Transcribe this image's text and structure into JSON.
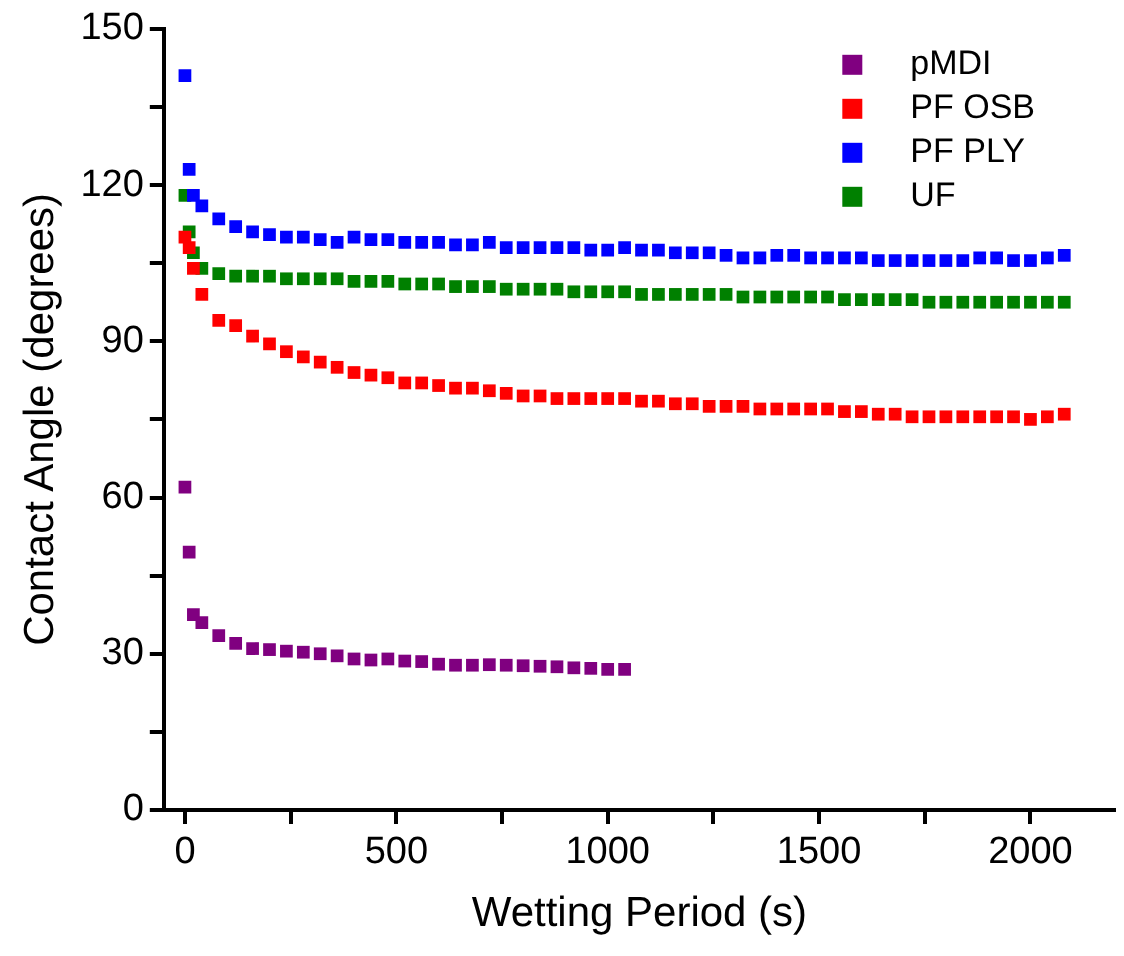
{
  "chart_data": {
    "type": "scatter",
    "xlabel": "Wetting Period (s)",
    "ylabel": "Contact Angle (degrees)",
    "xlim": [
      -50,
      2200
    ],
    "ylim": [
      0,
      150
    ],
    "xticks": [
      0,
      {
        "value": 250,
        "label": null
      },
      500,
      {
        "value": 750,
        "label": null
      },
      1000,
      {
        "value": 1250,
        "label": null
      },
      1500,
      {
        "value": 1750,
        "label": null
      },
      2000
    ],
    "yticks": [
      0,
      {
        "value": 15,
        "label": null
      },
      30,
      {
        "value": 45,
        "label": null
      },
      60,
      {
        "value": 75,
        "label": null
      },
      90,
      {
        "value": 105,
        "label": null
      },
      120,
      {
        "value": 135,
        "label": null
      },
      150
    ],
    "grid": false,
    "legend": "top right",
    "marker": "square",
    "series": [
      {
        "name": "pMDI",
        "color": "#800080",
        "x": [
          0,
          10,
          20,
          40,
          80,
          120,
          160,
          200,
          240,
          280,
          320,
          360,
          400,
          440,
          480,
          520,
          560,
          600,
          640,
          680,
          720,
          760,
          800,
          840,
          880,
          920,
          960,
          1000,
          1040
        ],
        "values": [
          62,
          49.5,
          37.5,
          36,
          33.5,
          32,
          31,
          30.8,
          30.5,
          30.3,
          30,
          29.6,
          29,
          28.8,
          29,
          28.6,
          28.5,
          28,
          27.8,
          27.8,
          27.9,
          27.8,
          27.7,
          27.6,
          27.5,
          27.3,
          27.2,
          27,
          27
        ]
      },
      {
        "name": "PF OSB",
        "color": "#ff0000",
        "x": [
          0,
          10,
          20,
          40,
          80,
          120,
          160,
          200,
          240,
          280,
          320,
          360,
          400,
          440,
          480,
          520,
          560,
          600,
          640,
          680,
          720,
          760,
          800,
          840,
          880,
          920,
          960,
          1000,
          1040,
          1080,
          1120,
          1160,
          1200,
          1240,
          1280,
          1320,
          1360,
          1400,
          1440,
          1480,
          1520,
          1560,
          1600,
          1640,
          1680,
          1720,
          1760,
          1800,
          1840,
          1880,
          1920,
          1960,
          2000,
          2040,
          2080
        ],
        "values": [
          110,
          108,
          104,
          99,
          94,
          93,
          91,
          89.5,
          88,
          87,
          86,
          85,
          84,
          83.5,
          83,
          82,
          82,
          81.5,
          81,
          81,
          80.5,
          80,
          79.5,
          79.5,
          79,
          79,
          79,
          79,
          79,
          78.5,
          78.5,
          78,
          78,
          77.5,
          77.5,
          77.5,
          77,
          77,
          77,
          77,
          77,
          76.5,
          76.5,
          76,
          76,
          75.5,
          75.5,
          75.5,
          75.5,
          75.5,
          75.5,
          75.5,
          75,
          75.5,
          76
        ]
      },
      {
        "name": "PF PLY",
        "color": "#0000ff",
        "x": [
          0,
          10,
          20,
          40,
          80,
          120,
          160,
          200,
          240,
          280,
          320,
          360,
          400,
          440,
          480,
          520,
          560,
          600,
          640,
          680,
          720,
          760,
          800,
          840,
          880,
          920,
          960,
          1000,
          1040,
          1080,
          1120,
          1160,
          1200,
          1240,
          1280,
          1320,
          1360,
          1400,
          1440,
          1480,
          1520,
          1560,
          1600,
          1640,
          1680,
          1720,
          1760,
          1800,
          1840,
          1880,
          1920,
          1960,
          2000,
          2040,
          2080
        ],
        "values": [
          141,
          123,
          118,
          116,
          113.5,
          112,
          111,
          110.5,
          110,
          110,
          109.5,
          109,
          110,
          109.5,
          109.5,
          109,
          109,
          109,
          108.5,
          108.5,
          109,
          108,
          108,
          108,
          108,
          108,
          107.5,
          107.5,
          108,
          107.5,
          107.5,
          107,
          107,
          107,
          106.5,
          106,
          106,
          106.5,
          106.5,
          106,
          106,
          106,
          106,
          105.5,
          105.5,
          105.5,
          105.5,
          105.5,
          105.5,
          106,
          106,
          105.5,
          105.5,
          106,
          106.5
        ]
      },
      {
        "name": "UF",
        "color": "#008000",
        "x": [
          0,
          10,
          20,
          40,
          80,
          120,
          160,
          200,
          240,
          280,
          320,
          360,
          400,
          440,
          480,
          520,
          560,
          600,
          640,
          680,
          720,
          760,
          800,
          840,
          880,
          920,
          960,
          1000,
          1040,
          1080,
          1120,
          1160,
          1200,
          1240,
          1280,
          1320,
          1360,
          1400,
          1440,
          1480,
          1520,
          1560,
          1600,
          1640,
          1680,
          1720,
          1760,
          1800,
          1840,
          1880,
          1920,
          1960,
          2000,
          2040,
          2080
        ],
        "values": [
          118,
          111,
          107,
          104,
          103,
          102.5,
          102.5,
          102.5,
          102,
          102,
          102,
          102,
          101.5,
          101.5,
          101.5,
          101,
          101,
          101,
          100.5,
          100.5,
          100.5,
          100,
          100,
          100,
          100,
          99.5,
          99.5,
          99.5,
          99.5,
          99,
          99,
          99,
          99,
          99,
          99,
          98.5,
          98.5,
          98.5,
          98.5,
          98.5,
          98.5,
          98,
          98,
          98,
          98,
          98,
          97.5,
          97.5,
          97.5,
          97.5,
          97.5,
          97.5,
          97.5,
          97.5,
          97.5
        ]
      }
    ]
  }
}
